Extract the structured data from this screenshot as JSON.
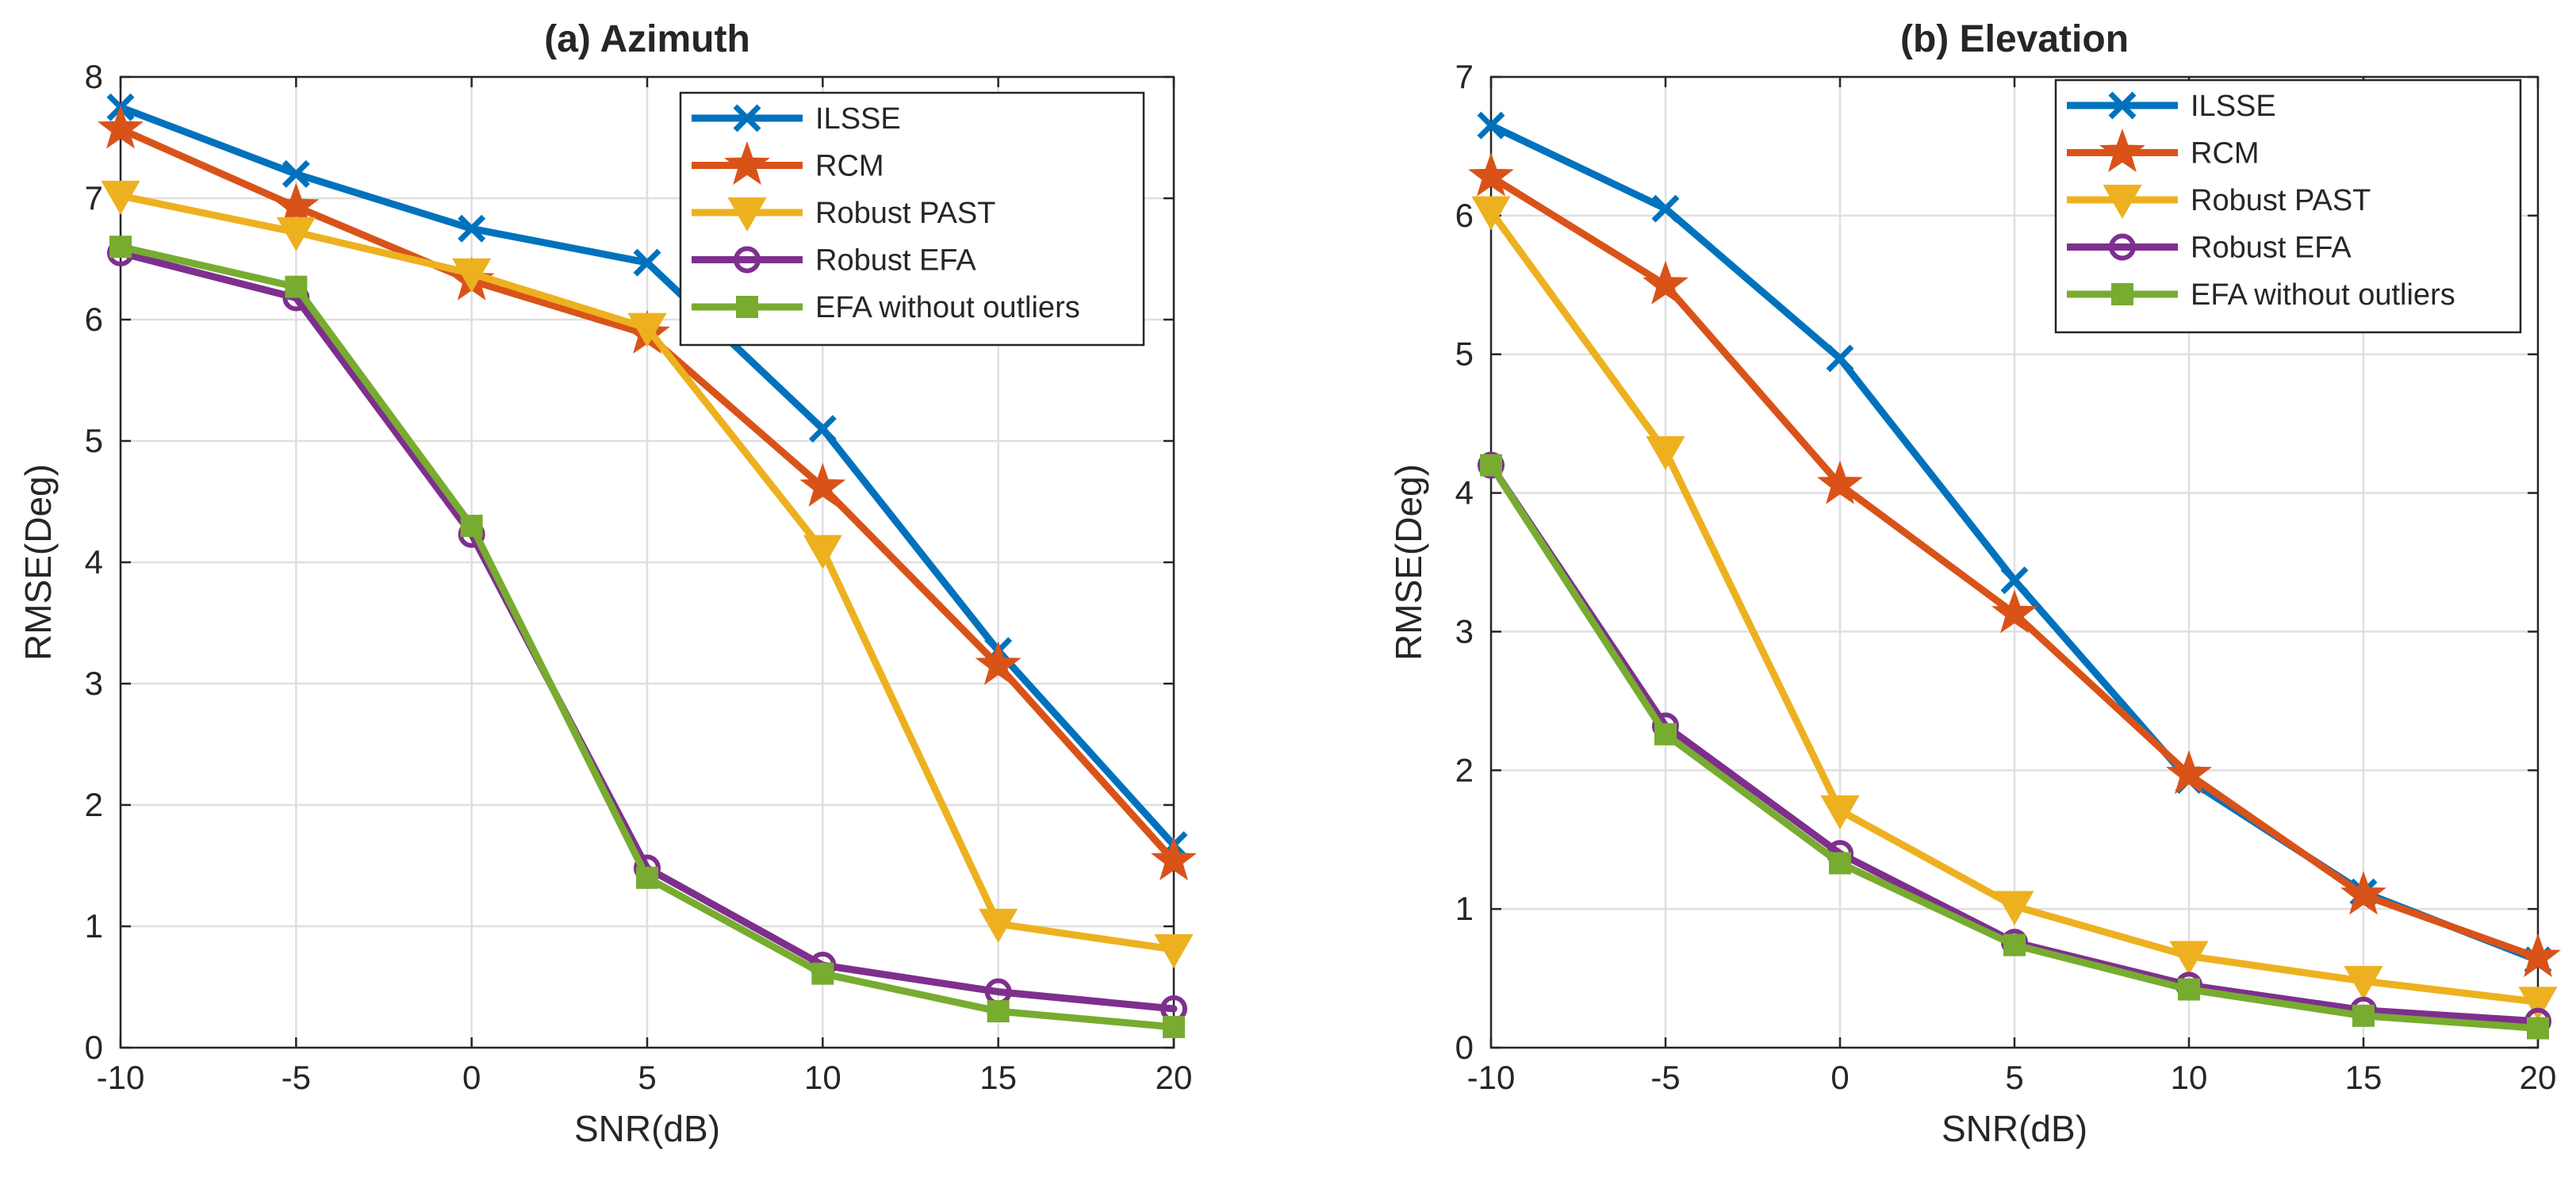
{
  "chart_data": [
    {
      "type": "line",
      "title": "(a) Azimuth",
      "xlabel": "SNR(dB)",
      "ylabel": "RMSE(Deg)",
      "x": [
        -10,
        -5,
        0,
        5,
        10,
        15,
        20
      ],
      "xlim": [
        -10,
        20
      ],
      "ylim": [
        0,
        8
      ],
      "xticks": [
        "-10",
        "-5",
        "0",
        "5",
        "10",
        "15",
        "20"
      ],
      "yticks": [
        "0",
        "1",
        "2",
        "3",
        "4",
        "5",
        "6",
        "7",
        "8"
      ],
      "grid": true,
      "legend_position": "top-right",
      "series": [
        {
          "name": "ILSSE",
          "color": "#0072BD",
          "marker": "x",
          "values": [
            7.75,
            7.2,
            6.75,
            6.47,
            5.1,
            3.27,
            1.67
          ]
        },
        {
          "name": "RCM",
          "color": "#D95319",
          "marker": "star",
          "values": [
            7.57,
            6.93,
            6.32,
            5.88,
            4.62,
            3.15,
            1.54
          ]
        },
        {
          "name": "Robust PAST",
          "color": "#EDB120",
          "marker": "triangle-down",
          "values": [
            7.02,
            6.72,
            6.38,
            5.93,
            4.1,
            1.02,
            0.81
          ]
        },
        {
          "name": "Robust EFA",
          "color": "#7E2F8E",
          "marker": "circle",
          "values": [
            6.55,
            6.18,
            4.23,
            1.48,
            0.68,
            0.46,
            0.32
          ]
        },
        {
          "name": "EFA without outliers",
          "color": "#77AC30",
          "marker": "square",
          "values": [
            6.6,
            6.27,
            4.3,
            1.4,
            0.61,
            0.3,
            0.17
          ]
        }
      ]
    },
    {
      "type": "line",
      "title": "(b) Elevation",
      "xlabel": "SNR(dB)",
      "ylabel": "RMSE(Deg)",
      "x": [
        -10,
        -5,
        0,
        5,
        10,
        15,
        20
      ],
      "xlim": [
        -10,
        20
      ],
      "ylim": [
        0,
        7
      ],
      "xticks": [
        "-10",
        "-5",
        "0",
        "5",
        "10",
        "15",
        "20"
      ],
      "yticks": [
        "0",
        "1",
        "2",
        "3",
        "4",
        "5",
        "6",
        "7"
      ],
      "grid": true,
      "legend_position": "top-right",
      "series": [
        {
          "name": "ILSSE",
          "color": "#0072BD",
          "marker": "x",
          "values": [
            6.65,
            6.05,
            4.97,
            3.37,
            1.93,
            1.12,
            0.63
          ]
        },
        {
          "name": "RCM",
          "color": "#D95319",
          "marker": "star",
          "values": [
            6.28,
            5.5,
            4.06,
            3.13,
            1.97,
            1.1,
            0.65
          ]
        },
        {
          "name": "Robust PAST",
          "color": "#EDB120",
          "marker": "triangle-down",
          "values": [
            6.03,
            4.3,
            1.71,
            1.02,
            0.66,
            0.48,
            0.33
          ]
        },
        {
          "name": "Robust EFA",
          "color": "#7E2F8E",
          "marker": "circle",
          "values": [
            4.2,
            2.32,
            1.4,
            0.76,
            0.45,
            0.27,
            0.19
          ]
        },
        {
          "name": "EFA without outliers",
          "color": "#77AC30",
          "marker": "square",
          "values": [
            4.2,
            2.26,
            1.33,
            0.74,
            0.42,
            0.23,
            0.14
          ]
        }
      ]
    }
  ]
}
